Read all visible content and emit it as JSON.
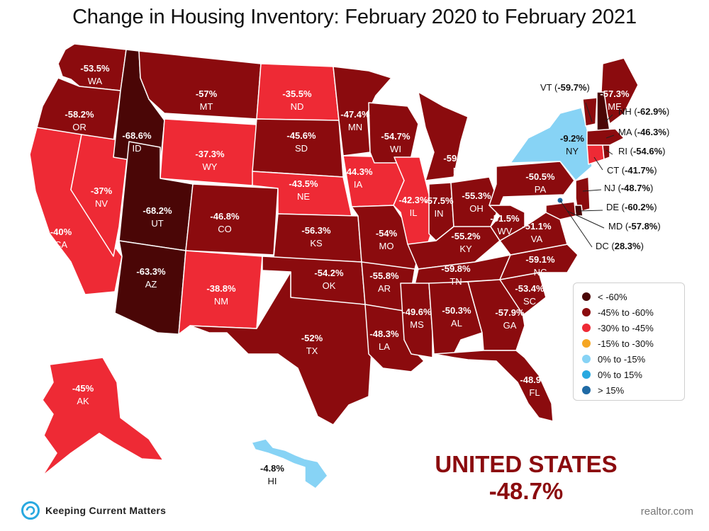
{
  "title": "Change in Housing Inventory: February 2020 to February 2021",
  "colors": {
    "lt60": "#4a0606",
    "r45_60": "#8b0b0e",
    "r30_45": "#ee2a35",
    "r15_30": "#f5a623",
    "r0_n15": "#87d3f5",
    "r0_15": "#29a9e0",
    "gt15": "#1f6aa5"
  },
  "legend": [
    {
      "label": "< -60%",
      "color": "#4a0606"
    },
    {
      "label": "-45% to -60%",
      "color": "#8b0b0e"
    },
    {
      "label": "-30% to -45%",
      "color": "#ee2a35"
    },
    {
      "label": "-15% to -30%",
      "color": "#f5a623"
    },
    {
      "label": "0% to -15%",
      "color": "#87d3f5"
    },
    {
      "label": "0% to 15%",
      "color": "#29a9e0"
    },
    {
      "label": "> 15%",
      "color": "#1f6aa5"
    }
  ],
  "states": {
    "WA": "-53.5%",
    "OR": "-58.2%",
    "CA": "-40%",
    "NV": "-37%",
    "ID": "-68.6%",
    "MT": "-57%",
    "WY": "-37.3%",
    "UT": "-68.2%",
    "AZ": "-63.3%",
    "CO": "-46.8%",
    "NM": "-38.8%",
    "ND": "-35.5%",
    "SD": "-45.6%",
    "NE": "-43.5%",
    "KS": "-56.3%",
    "OK": "-54.2%",
    "TX": "-52%",
    "MN": "-47.4%",
    "IA": "-44.3%",
    "MO": "-54%",
    "AR": "-55.8%",
    "LA": "-48.3%",
    "WI": "-54.7%",
    "IL": "-42.3%",
    "MI": "-59.1%",
    "IN": "-57.5%",
    "OH": "-55.3%",
    "KY": "-55.2%",
    "TN": "-59.8%",
    "MS": "-49.6%",
    "AL": "-50.3%",
    "GA": "-57.9%",
    "FL": "-48.9%",
    "SC": "-53.4%",
    "NC": "-59.1%",
    "VA": "-51.1%",
    "WV": "-51.5%",
    "PA": "-50.5%",
    "NY": "-9.2%",
    "ME": "-57.3%",
    "AK": "-45%",
    "HI": "-4.8%",
    "VT": "-59.7%",
    "NH": "-62.9%",
    "MA": "-46.3%",
    "RI": "-54.6%",
    "CT": "-41.7%",
    "NJ": "-48.7%",
    "DE": "-60.2%",
    "MD": "-57.8%",
    "DC": "28.3%"
  },
  "us_summary": {
    "label": "UNITED STATES",
    "value": "-48.7%"
  },
  "brand": "Keeping Current Matters",
  "source": "realtor.com"
}
